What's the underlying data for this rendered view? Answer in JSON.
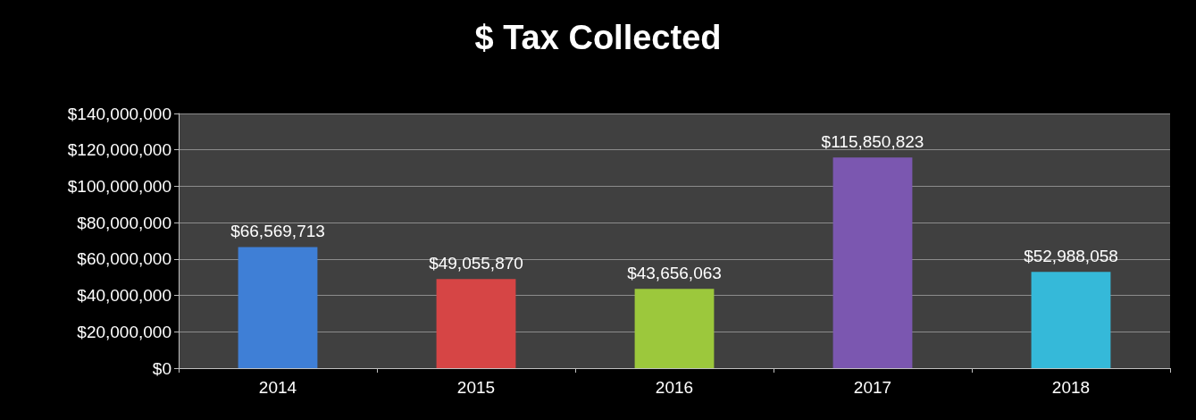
{
  "chart_data": {
    "type": "bar",
    "title": "$ Tax Collected",
    "categories": [
      "2014",
      "2015",
      "2016",
      "2017",
      "2018"
    ],
    "values": [
      66569713,
      49055870,
      43656063,
      115850823,
      52988058
    ],
    "value_labels": [
      "$66,569,713",
      "$49,055,870",
      "$43,656,063",
      "$115,850,823",
      "$52,988,058"
    ],
    "colors": [
      "#3f7fd6",
      "#d64545",
      "#9cc83c",
      "#7b57b0",
      "#35b9d9"
    ],
    "ylim": [
      0,
      140000000
    ],
    "yticks": [
      {
        "value": 0,
        "label": "$0"
      },
      {
        "value": 20000000,
        "label": "$20,000,000"
      },
      {
        "value": 40000000,
        "label": "$40,000,000"
      },
      {
        "value": 60000000,
        "label": "$60,000,000"
      },
      {
        "value": 80000000,
        "label": "$80,000,000"
      },
      {
        "value": 100000000,
        "label": "$100,000,000"
      },
      {
        "value": 120000000,
        "label": "$120,000,000"
      },
      {
        "value": 140000000,
        "label": "$140,000,000"
      }
    ],
    "grid": "y"
  }
}
